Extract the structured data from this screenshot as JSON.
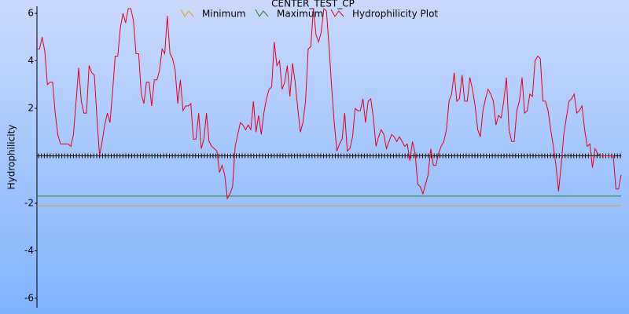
{
  "chart_data": {
    "type": "line",
    "title": "CENTER_TEST_CP",
    "ylabel": "Hydrophilicity",
    "ylim": [
      -6.4,
      6.3
    ],
    "yticks": [
      -6,
      -4,
      -2,
      2,
      4,
      6
    ],
    "series": [
      {
        "name": "Minimum",
        "color": "#e8a020",
        "value": -2.1
      },
      {
        "name": "Maximum",
        "color": "#208020",
        "value": -1.7
      },
      {
        "name": "Hydrophilicity Plot",
        "color": "#e00020",
        "values": [
          4.5,
          4.5,
          5.0,
          4.4,
          3.0,
          3.1,
          3.1,
          1.8,
          0.9,
          0.5,
          0.5,
          0.5,
          0.5,
          0.4,
          0.9,
          2.3,
          3.7,
          2.3,
          1.8,
          1.8,
          3.8,
          3.5,
          3.4,
          1.6,
          0.0,
          0.6,
          1.3,
          1.8,
          1.4,
          2.7,
          4.2,
          4.2,
          5.4,
          6.0,
          5.6,
          6.2,
          6.2,
          5.7,
          4.3,
          4.3,
          2.6,
          2.2,
          3.1,
          3.1,
          2.1,
          3.2,
          3.2,
          3.6,
          4.5,
          4.3,
          5.9,
          4.3,
          4.1,
          3.6,
          2.2,
          3.2,
          1.9,
          2.1,
          2.1,
          2.2,
          0.7,
          0.7,
          1.8,
          0.3,
          0.7,
          1.8,
          0.6,
          0.4,
          0.3,
          0.2,
          -0.7,
          -0.4,
          -0.8,
          -1.8,
          -1.6,
          -1.3,
          0.4,
          0.9,
          1.4,
          1.3,
          1.1,
          1.3,
          1.1,
          2.3,
          1.0,
          1.7,
          0.9,
          1.8,
          2.4,
          2.8,
          2.9,
          4.8,
          3.8,
          4.0,
          2.8,
          3.1,
          3.8,
          2.5,
          3.9,
          3.1,
          2.0,
          1.0,
          1.4,
          2.3,
          4.5,
          4.6,
          6.2,
          5.1,
          4.8,
          5.2,
          6.2,
          6.1,
          4.6,
          2.9,
          1.4,
          0.2,
          0.5,
          0.7,
          1.8,
          0.2,
          0.3,
          0.8,
          2.0,
          1.9,
          1.9,
          2.4,
          1.4,
          2.3,
          2.4,
          1.6,
          0.4,
          0.8,
          1.1,
          0.9,
          0.3,
          0.6,
          0.9,
          0.8,
          0.6,
          0.8,
          0.6,
          0.4,
          0.5,
          -0.2,
          0.6,
          0.1,
          -1.2,
          -1.3,
          -1.6,
          -1.2,
          -0.8,
          0.3,
          -0.4,
          -0.4,
          0.1,
          0.4,
          0.6,
          1.1,
          2.3,
          2.6,
          3.5,
          2.3,
          2.4,
          3.4,
          2.3,
          2.3,
          3.3,
          2.8,
          2.1,
          1.1,
          0.8,
          1.9,
          2.4,
          2.8,
          2.6,
          2.3,
          1.3,
          1.7,
          1.6,
          2.3,
          3.3,
          1.1,
          0.6,
          0.6,
          1.9,
          2.3,
          3.3,
          1.8,
          1.9,
          2.6,
          2.5,
          4.0,
          4.2,
          4.1,
          2.3,
          2.3,
          1.9,
          1.1,
          0.4,
          -0.4,
          -1.5,
          -0.4,
          0.9,
          1.6,
          2.3,
          2.4,
          2.6,
          1.8,
          1.9,
          2.1,
          1.1,
          0.4,
          0.5,
          -0.5,
          0.3,
          0.1,
          0.0,
          0.0,
          0.0,
          0.0,
          0.0,
          0.0,
          -1.4,
          -1.4,
          -0.8
        ]
      }
    ]
  }
}
